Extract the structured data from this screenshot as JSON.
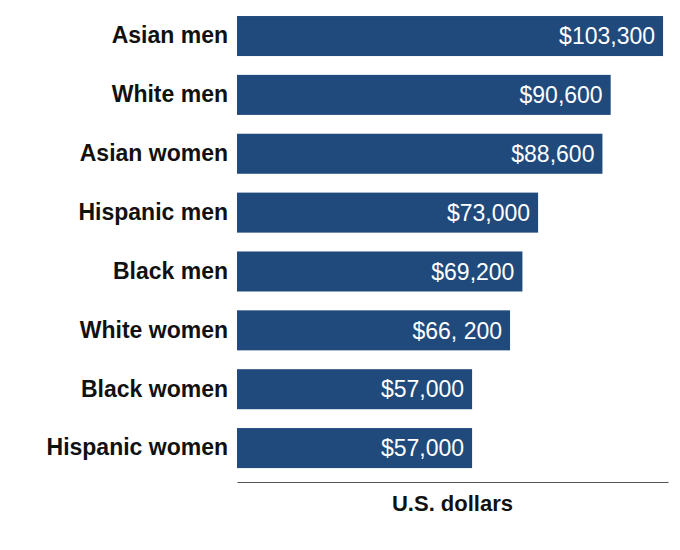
{
  "chart_data": {
    "type": "bar",
    "orientation": "horizontal",
    "categories": [
      "Asian men",
      "White men",
      "Asian women",
      "Hispanic men",
      "Black men",
      "White women",
      "Black women",
      "Hispanic women"
    ],
    "values": [
      103300,
      90600,
      88600,
      73000,
      69200,
      66200,
      57000,
      57000
    ],
    "value_labels": [
      "$103,300",
      "$90,600",
      "$88,600",
      "$73,000",
      "$69,200",
      "$66, 200",
      "$57,000",
      "$57,000"
    ],
    "color": "#214a7c",
    "xlim": [
      0,
      104500
    ],
    "xlabel": "U.S. dollars",
    "data_labels": true,
    "tick_labels": false
  }
}
